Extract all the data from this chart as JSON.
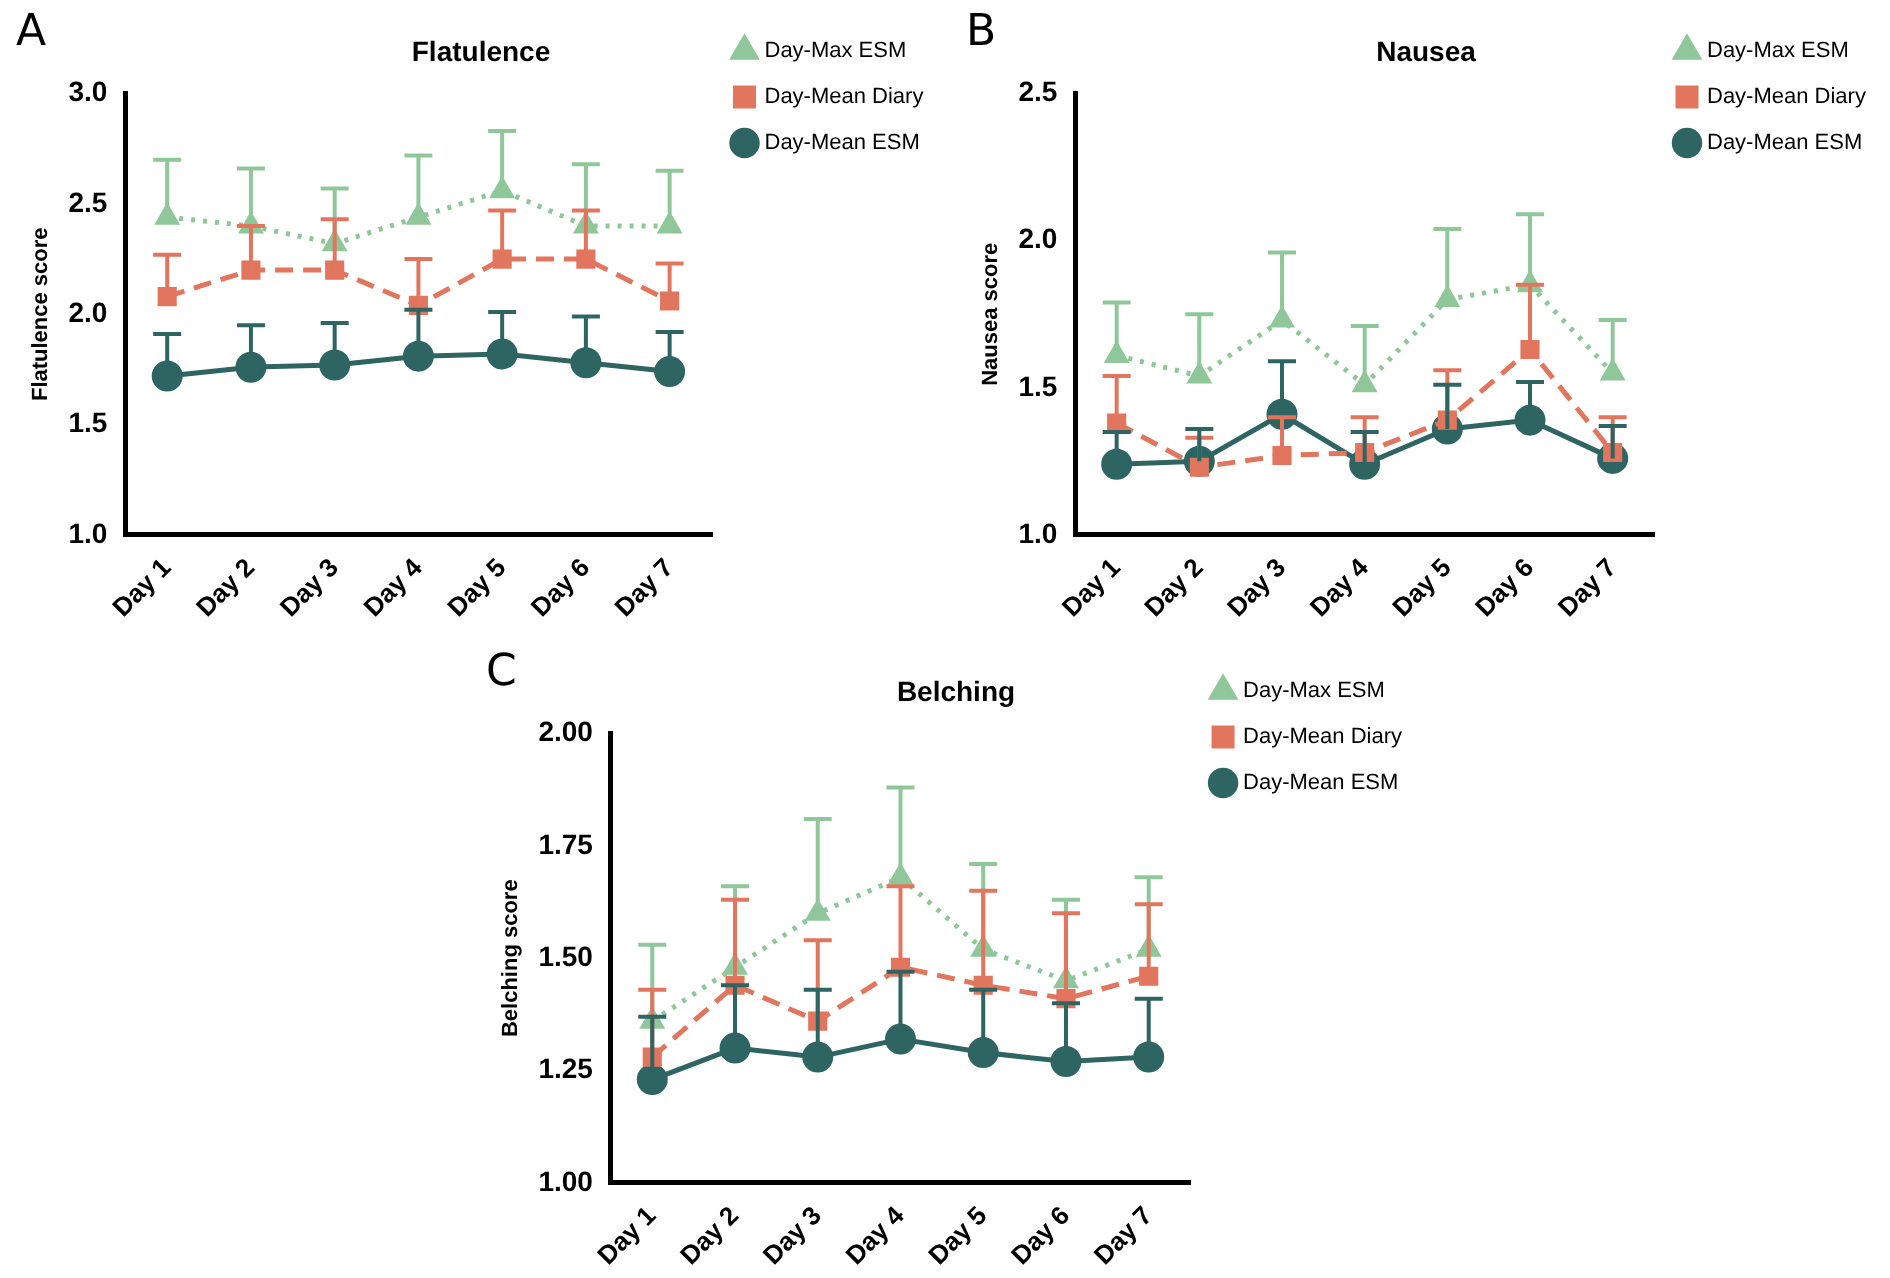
{
  "chart_data": [
    {
      "type": "line",
      "title": "Flatulence",
      "ylabel": "Flatulence score",
      "annotations": [
        "A"
      ],
      "categories": [
        "Day 1",
        "Day 2",
        "Day 3",
        "Day 4",
        "Day 5",
        "Day 6",
        "Day 7"
      ],
      "ylim": [
        1.0,
        3.0
      ],
      "yticks": [
        {
          "value": 1,
          "label": "1.0"
        },
        1.5,
        {
          "value": 2,
          "label": "2.0"
        },
        2.5,
        {
          "value": 3,
          "label": "3.0"
        }
      ],
      "grid": false,
      "legend": "right",
      "series": [
        {
          "name": "Day-Max ESM",
          "color": "#8fc79b",
          "marker": "triangle",
          "line_style": "dotted",
          "values": [
            2.44,
            2.4,
            2.32,
            2.44,
            2.56,
            2.4,
            2.4
          ],
          "errors": [
            [
              2.44,
              2.7
            ],
            [
              2.4,
              2.66
            ],
            [
              2.32,
              2.57
            ],
            [
              2.44,
              2.72
            ],
            [
              2.56,
              2.83
            ],
            [
              2.4,
              2.68
            ],
            [
              2.4,
              2.65
            ]
          ]
        },
        {
          "name": "Day-Mean Diary",
          "color": "#e2755e",
          "marker": "square",
          "line_style": "dashed",
          "values": [
            2.08,
            2.2,
            2.2,
            2.04,
            2.25,
            2.25,
            2.06
          ],
          "errors": [
            [
              2.08,
              2.27
            ],
            [
              2.2,
              2.4
            ],
            [
              2.2,
              2.43
            ],
            [
              2.04,
              2.25
            ],
            [
              2.25,
              2.47
            ],
            [
              2.25,
              2.47
            ],
            [
              2.06,
              2.23
            ]
          ]
        },
        {
          "name": "Day-Mean ESM",
          "color": "#2e6462",
          "marker": "circle",
          "line_style": "solid",
          "values": [
            1.72,
            1.76,
            1.77,
            1.81,
            1.82,
            1.78,
            1.74
          ],
          "errors": [
            [
              1.72,
              1.91
            ],
            [
              1.76,
              1.95
            ],
            [
              1.77,
              1.96
            ],
            [
              1.81,
              2.02
            ],
            [
              1.82,
              2.01
            ],
            [
              1.78,
              1.99
            ],
            [
              1.74,
              1.92
            ]
          ]
        }
      ]
    },
    {
      "type": "line",
      "title": "Nausea",
      "ylabel": "Nausea score",
      "annotations": [
        "B"
      ],
      "categories": [
        "Day 1",
        "Day 2",
        "Day 3",
        "Day 4",
        "Day 5",
        "Day 6",
        "Day 7"
      ],
      "ylim": [
        1.0,
        2.5
      ],
      "yticks": [
        {
          "value": 1,
          "label": "1.0"
        },
        1.5,
        {
          "value": 2,
          "label": "2.0"
        },
        2.5
      ],
      "grid": false,
      "legend": "right",
      "series": [
        {
          "name": "Day-Max ESM",
          "color": "#8fc79b",
          "marker": "triangle",
          "line_style": "dotted",
          "values": [
            1.61,
            1.54,
            1.73,
            1.51,
            1.8,
            1.85,
            1.55
          ],
          "errors": [
            [
              1.61,
              1.79
            ],
            [
              1.54,
              1.75
            ],
            [
              1.73,
              1.96
            ],
            [
              1.51,
              1.71
            ],
            [
              1.8,
              2.04
            ],
            [
              1.85,
              2.09
            ],
            [
              1.55,
              1.73
            ]
          ]
        },
        {
          "name": "Day-Mean Diary",
          "color": "#e2755e",
          "marker": "square",
          "line_style": "dashed",
          "values": [
            1.38,
            1.23,
            1.27,
            1.28,
            1.39,
            1.63,
            1.28
          ],
          "errors": [
            [
              1.38,
              1.54
            ],
            [
              1.23,
              1.33
            ],
            [
              1.27,
              1.4
            ],
            [
              1.28,
              1.4
            ],
            [
              1.39,
              1.56
            ],
            [
              1.63,
              1.85
            ],
            [
              1.28,
              1.4
            ]
          ]
        },
        {
          "name": "Day-Mean ESM",
          "color": "#2e6462",
          "marker": "circle",
          "line_style": "solid",
          "values": [
            1.24,
            1.25,
            1.41,
            1.24,
            1.36,
            1.39,
            1.26
          ],
          "errors": [
            [
              1.24,
              1.35
            ],
            [
              1.25,
              1.36
            ],
            [
              1.41,
              1.59
            ],
            [
              1.24,
              1.35
            ],
            [
              1.36,
              1.51
            ],
            [
              1.39,
              1.52
            ],
            [
              1.26,
              1.37
            ]
          ]
        }
      ]
    },
    {
      "type": "line",
      "title": "Belching",
      "ylabel": "Belching score",
      "annotations": [
        "C"
      ],
      "categories": [
        "Day 1",
        "Day 2",
        "Day 3",
        "Day 4",
        "Day 5",
        "Day 6",
        "Day 7"
      ],
      "ylim": [
        1.0,
        2.0
      ],
      "yticks": [
        {
          "value": 1,
          "label": "1.00"
        },
        1.25,
        {
          "value": 1.5,
          "label": "1.50"
        },
        1.75,
        {
          "value": 2,
          "label": "2.00"
        }
      ],
      "grid": false,
      "legend": "right",
      "series": [
        {
          "name": "Day-Max ESM",
          "color": "#8fc79b",
          "marker": "triangle",
          "line_style": "dotted",
          "values": [
            1.36,
            1.48,
            1.6,
            1.68,
            1.52,
            1.45,
            1.52
          ],
          "errors": [
            [
              1.36,
              1.53
            ],
            [
              1.48,
              1.66
            ],
            [
              1.6,
              1.81
            ],
            [
              1.68,
              1.88
            ],
            [
              1.52,
              1.71
            ],
            [
              1.45,
              1.63
            ],
            [
              1.52,
              1.68
            ]
          ]
        },
        {
          "name": "Day-Mean Diary",
          "color": "#e2755e",
          "marker": "square",
          "line_style": "dashed",
          "values": [
            1.28,
            1.44,
            1.36,
            1.48,
            1.44,
            1.41,
            1.46
          ],
          "errors": [
            [
              1.28,
              1.43
            ],
            [
              1.44,
              1.63
            ],
            [
              1.36,
              1.54
            ],
            [
              1.48,
              1.66
            ],
            [
              1.44,
              1.65
            ],
            [
              1.41,
              1.6
            ],
            [
              1.46,
              1.62
            ]
          ]
        },
        {
          "name": "Day-Mean ESM",
          "color": "#2e6462",
          "marker": "circle",
          "line_style": "solid",
          "values": [
            1.23,
            1.3,
            1.28,
            1.32,
            1.29,
            1.27,
            1.28
          ],
          "errors": [
            [
              1.23,
              1.37
            ],
            [
              1.3,
              1.44
            ],
            [
              1.28,
              1.43
            ],
            [
              1.32,
              1.47
            ],
            [
              1.29,
              1.43
            ],
            [
              1.27,
              1.4
            ],
            [
              1.28,
              1.41
            ]
          ]
        }
      ]
    }
  ]
}
